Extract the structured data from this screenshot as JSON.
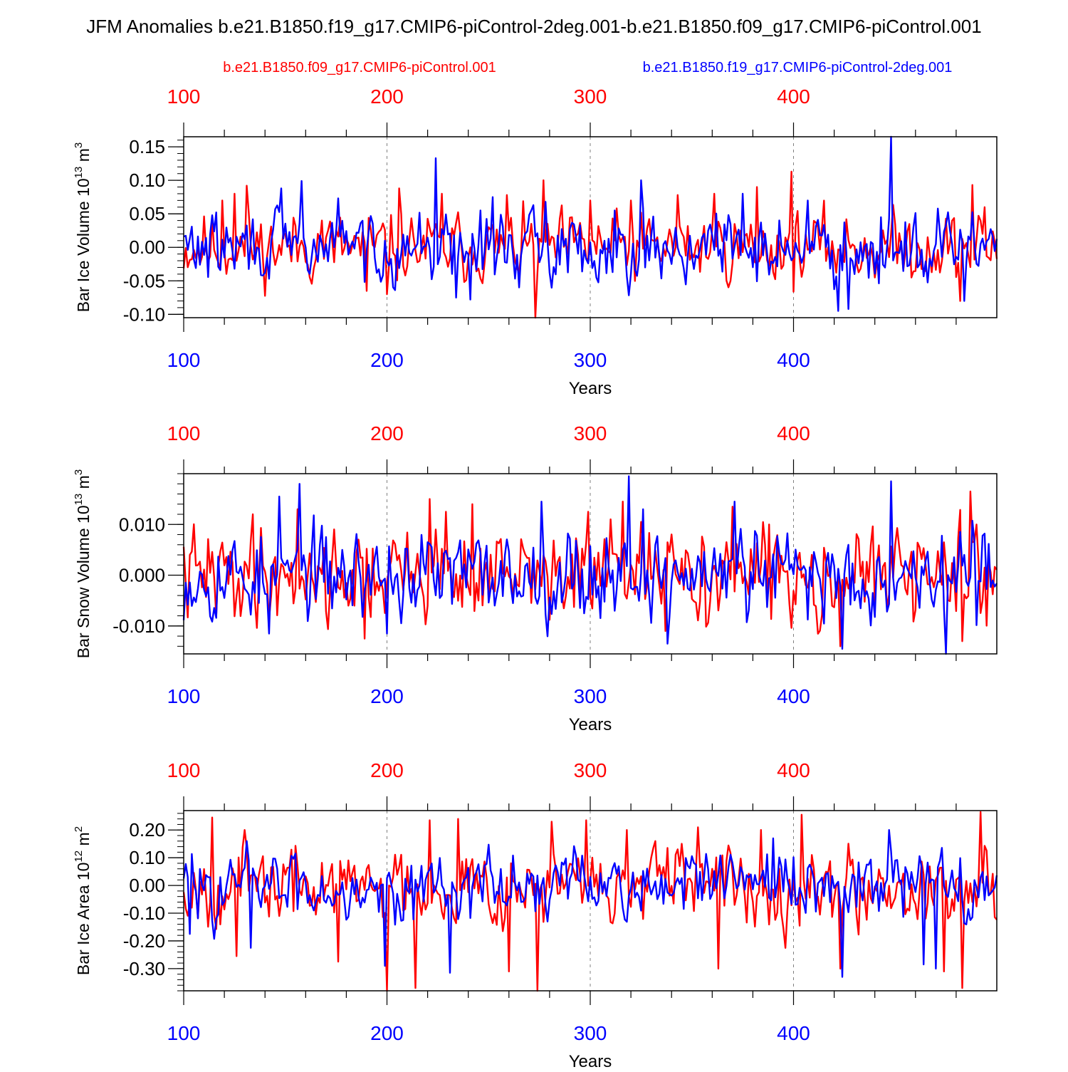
{
  "title": "JFM Anomalies b.e21.B1850.f19_g17.CMIP6-piControl-2deg.001-b.e21.B1850.f09_g17.CMIP6-piControl.001",
  "legend": {
    "red_label": "b.e21.B1850.f09_g17.CMIP6-piControl.001",
    "blue_label": "b.e21.B1850.f19_g17.CMIP6-piControl-2deg.001"
  },
  "colors": {
    "red": "#ff0000",
    "blue": "#0000ff",
    "axis": "#000000",
    "grid": "#808080"
  },
  "chart_data": [
    {
      "type": "line",
      "id": "ice-volume",
      "ylabel": "Bar Ice Volume 10",
      "ylabel_exp": "13",
      "ylabel_unit": " m",
      "ylabel_unit_exp": "3",
      "xlabel": "Years",
      "xlim": [
        100,
        500
      ],
      "ylim": [
        -0.105,
        0.165
      ],
      "x_ticks": [
        100,
        200,
        300,
        400
      ],
      "x_tick_labels": [
        "100",
        "200",
        "300",
        "400"
      ],
      "y_ticks": [
        0.15,
        0.1,
        0.05,
        0.0,
        -0.05,
        -0.1
      ],
      "y_tick_labels": [
        "0.15",
        "0.10",
        "0.05",
        "0.00",
        "-0.05",
        "-0.10"
      ],
      "y_minor_step": 0.01,
      "series": [
        {
          "name": "b.e21.B1850.f09_g17.CMIP6-piControl.001",
          "color": "#ff0000",
          "seed": 11,
          "amplitude": 0.034,
          "smooth": 0.25,
          "peaks": [
            [
              119,
              0.07
            ],
            [
              125,
              0.08
            ],
            [
              131,
              0.092
            ],
            [
              168,
              0.04
            ],
            [
              190,
              -0.065
            ],
            [
              200,
              -0.07
            ],
            [
              206,
              0.088
            ],
            [
              227,
              0.08
            ],
            [
              259,
              0.078
            ],
            [
              273,
              -0.105
            ],
            [
              277,
              0.1
            ],
            [
              300,
              0.07
            ],
            [
              320,
              0.07
            ],
            [
              343,
              0.078
            ],
            [
              361,
              0.08
            ],
            [
              382,
              0.09
            ],
            [
              399,
              0.113
            ],
            [
              482,
              -0.08
            ],
            [
              488,
              0.093
            ],
            [
              494,
              0.06
            ]
          ]
        },
        {
          "name": "b.e21.B1850.f19_g17.CMIP6-piControl-2deg.001",
          "color": "#0000ff",
          "seed": 29,
          "amplitude": 0.034,
          "smooth": 0.3,
          "peaks": [
            [
              148,
              0.088
            ],
            [
              158,
              0.099
            ],
            [
              176,
              0.073
            ],
            [
              224,
              0.133
            ],
            [
              234,
              -0.075
            ],
            [
              241,
              -0.078
            ],
            [
              252,
              0.075
            ],
            [
              278,
              0.068
            ],
            [
              312,
              0.055
            ],
            [
              325,
              0.1
            ],
            [
              375,
              0.08
            ],
            [
              407,
              0.07
            ],
            [
              422,
              -0.095
            ],
            [
              427,
              -0.092
            ],
            [
              443,
              0.045
            ],
            [
              448,
              0.165
            ],
            [
              459,
              0.03
            ],
            [
              484,
              -0.08
            ]
          ]
        }
      ]
    },
    {
      "type": "line",
      "id": "snow-volume",
      "ylabel": "Bar Snow Volume 10",
      "ylabel_exp": "13",
      "ylabel_unit": " m",
      "ylabel_unit_exp": "3",
      "xlabel": "Years",
      "xlim": [
        100,
        500
      ],
      "ylim": [
        -0.0155,
        0.02
      ],
      "x_ticks": [
        100,
        200,
        300,
        400
      ],
      "x_tick_labels": [
        "100",
        "200",
        "300",
        "400"
      ],
      "y_ticks": [
        0.01,
        0.0,
        -0.01
      ],
      "y_tick_labels": [
        "0.010",
        "0.000",
        "-0.010"
      ],
      "y_minor_step": 0.002,
      "series": [
        {
          "name": "b.e21.B1850.f09_g17.CMIP6-piControl.001",
          "color": "#ff0000",
          "seed": 41,
          "amplitude": 0.0058,
          "smooth": 0.2,
          "peaks": [
            [
              134,
              0.012
            ],
            [
              156,
              0.013
            ],
            [
              189,
              -0.0125
            ],
            [
              221,
              0.015
            ],
            [
              229,
              0.0125
            ],
            [
              242,
              0.014
            ],
            [
              299,
              0.0125
            ],
            [
              316,
              0.0145
            ],
            [
              337,
              -0.011
            ],
            [
              370,
              0.0135
            ],
            [
              388,
              0.01
            ],
            [
              423,
              -0.014
            ],
            [
              487,
              0.0165
            ],
            [
              490,
              0.01
            ],
            [
              483,
              -0.013
            ]
          ]
        },
        {
          "name": "b.e21.B1850.f19_g17.CMIP6-piControl-2deg.001",
          "color": "#0000ff",
          "seed": 53,
          "amplitude": 0.0058,
          "smooth": 0.25,
          "peaks": [
            [
              147,
              0.0155
            ],
            [
              157,
              0.018
            ],
            [
              142,
              -0.0115
            ],
            [
              200,
              -0.0115
            ],
            [
              276,
              0.0145
            ],
            [
              319,
              0.0195
            ],
            [
              326,
              0.013
            ],
            [
              338,
              -0.0135
            ],
            [
              371,
              0.0145
            ],
            [
              448,
              0.0185
            ],
            [
              424,
              -0.0145
            ],
            [
              475,
              -0.0155
            ]
          ]
        }
      ]
    },
    {
      "type": "line",
      "id": "ice-area",
      "ylabel": "Bar Ice Area 10",
      "ylabel_exp": "12",
      "ylabel_unit": " m",
      "ylabel_unit_exp": "2",
      "xlabel": "Years",
      "xlim": [
        100,
        500
      ],
      "ylim": [
        -0.38,
        0.27
      ],
      "x_ticks": [
        100,
        200,
        300,
        400
      ],
      "x_tick_labels": [
        "100",
        "200",
        "300",
        "400"
      ],
      "y_ticks": [
        0.2,
        0.1,
        0.0,
        -0.1,
        -0.2,
        -0.3
      ],
      "y_tick_labels": [
        "0.20",
        "0.10",
        "0.00",
        "-0.10",
        "-0.20",
        "-0.30"
      ],
      "y_minor_step": 0.02,
      "series": [
        {
          "name": "b.e21.B1850.f09_g17.CMIP6-piControl.001",
          "color": "#ff0000",
          "seed": 67,
          "amplitude": 0.09,
          "smooth": 0.3,
          "peaks": [
            [
              114,
              0.245
            ],
            [
              126,
              -0.255
            ],
            [
              130,
              0.2
            ],
            [
              176,
              -0.275
            ],
            [
              200,
              -0.38
            ],
            [
              221,
              0.235
            ],
            [
              214,
              -0.37
            ],
            [
              235,
              0.24
            ],
            [
              260,
              -0.31
            ],
            [
              274,
              -0.38
            ],
            [
              281,
              0.23
            ],
            [
              298,
              0.235
            ],
            [
              318,
              0.2
            ],
            [
              353,
              0.21
            ],
            [
              363,
              -0.3
            ],
            [
              384,
              0.2
            ],
            [
              404,
              0.255
            ],
            [
              423,
              -0.3
            ],
            [
              474,
              -0.31
            ],
            [
              483,
              -0.37
            ],
            [
              492,
              0.265
            ]
          ]
        },
        {
          "name": "b.e21.B1850.f19_g17.CMIP6-piControl-2deg.001",
          "color": "#0000ff",
          "seed": 83,
          "amplitude": 0.08,
          "smooth": 0.35,
          "peaks": [
            [
              103,
              -0.175
            ],
            [
              131,
              0.16
            ],
            [
              133,
              -0.225
            ],
            [
              199,
              -0.29
            ],
            [
              231,
              -0.315
            ],
            [
              390,
              0.17
            ],
            [
              424,
              -0.33
            ],
            [
              447,
              0.2
            ],
            [
              470,
              -0.3
            ],
            [
              464,
              -0.285
            ]
          ]
        }
      ]
    }
  ]
}
